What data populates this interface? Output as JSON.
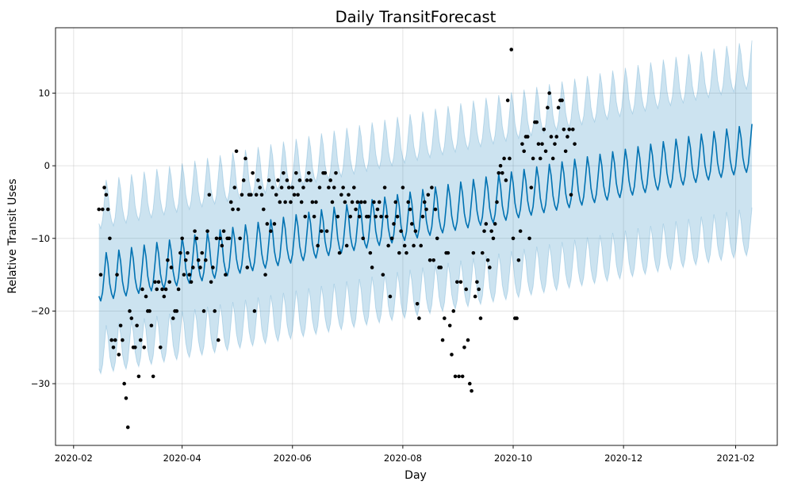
{
  "chart_data": {
    "type": "line",
    "title": "Daily TransitForecast",
    "xlabel": "Day",
    "ylabel": "Relative Transit Uses",
    "x_range": [
      "2020-01-22",
      "2021-02-24"
    ],
    "ylim": [
      -38.5,
      19.0
    ],
    "x_ticks": [
      {
        "date": "2020-02-01",
        "label": "2020-02"
      },
      {
        "date": "2020-04-01",
        "label": "2020-04"
      },
      {
        "date": "2020-06-01",
        "label": "2020-06"
      },
      {
        "date": "2020-08-01",
        "label": "2020-08"
      },
      {
        "date": "2020-10-01",
        "label": "2020-10"
      },
      {
        "date": "2020-12-01",
        "label": "2020-12"
      },
      {
        "date": "2021-02-01",
        "label": "2021-02"
      }
    ],
    "y_ticks": [
      {
        "value": 10,
        "label": "10"
      },
      {
        "value": 0,
        "label": "0"
      },
      {
        "value": -10,
        "label": "−10"
      },
      {
        "value": -20,
        "label": "−20"
      },
      {
        "value": -30,
        "label": "−30"
      }
    ],
    "grid": true,
    "series": [
      {
        "kind": "forecast_line",
        "color": "#0072B2",
        "start_date": "2020-02-15",
        "end_date": "2021-02-10",
        "trend_start": -15.3,
        "trend_end": 2.6,
        "weekly_amplitude": 3.5,
        "weekly_min": -3.5
      },
      {
        "kind": "uncertainty_band",
        "color": "#0072B2",
        "opacity": 0.2,
        "lower_offset_start": -10,
        "lower_offset_end": -11.5,
        "upper_offset_start": 10,
        "upper_offset_end": 11.5
      },
      {
        "kind": "observed_points",
        "color": "#000000",
        "points": [
          [
            "2020-02-15",
            -6
          ],
          [
            "2020-02-16",
            -15
          ],
          [
            "2020-02-17",
            -6
          ],
          [
            "2020-02-18",
            -3
          ],
          [
            "2020-02-19",
            -4
          ],
          [
            "2020-02-20",
            -6
          ],
          [
            "2020-02-21",
            -10
          ],
          [
            "2020-02-22",
            -24
          ],
          [
            "2020-02-23",
            -25
          ],
          [
            "2020-02-24",
            -24
          ],
          [
            "2020-02-25",
            -15
          ],
          [
            "2020-02-26",
            -26
          ],
          [
            "2020-02-27",
            -22
          ],
          [
            "2020-02-28",
            -24
          ],
          [
            "2020-02-29",
            -30
          ],
          [
            "2020-03-01",
            -32
          ],
          [
            "2020-03-02",
            -36
          ],
          [
            "2020-03-03",
            -20
          ],
          [
            "2020-03-04",
            -21
          ],
          [
            "2020-03-05",
            -25
          ],
          [
            "2020-03-06",
            -25
          ],
          [
            "2020-03-07",
            -22
          ],
          [
            "2020-03-08",
            -29
          ],
          [
            "2020-03-09",
            -24
          ],
          [
            "2020-03-10",
            -17
          ],
          [
            "2020-03-11",
            -25
          ],
          [
            "2020-03-12",
            -18
          ],
          [
            "2020-03-13",
            -20
          ],
          [
            "2020-03-14",
            -20
          ],
          [
            "2020-03-15",
            -22
          ],
          [
            "2020-03-16",
            -29
          ],
          [
            "2020-03-17",
            -16
          ],
          [
            "2020-03-18",
            -17
          ],
          [
            "2020-03-19",
            -16
          ],
          [
            "2020-03-20",
            -25
          ],
          [
            "2020-03-21",
            -17
          ],
          [
            "2020-03-22",
            -18
          ],
          [
            "2020-03-23",
            -17
          ],
          [
            "2020-03-24",
            -13
          ],
          [
            "2020-03-25",
            -16
          ],
          [
            "2020-03-26",
            -14
          ],
          [
            "2020-03-27",
            -21
          ],
          [
            "2020-03-28",
            -20
          ],
          [
            "2020-03-29",
            -20
          ],
          [
            "2020-03-30",
            -17
          ],
          [
            "2020-03-31",
            -12
          ],
          [
            "2020-04-01",
            -10
          ],
          [
            "2020-04-02",
            -15
          ],
          [
            "2020-04-03",
            -13
          ],
          [
            "2020-04-04",
            -12
          ],
          [
            "2020-04-05",
            -15
          ],
          [
            "2020-04-06",
            -16
          ],
          [
            "2020-04-07",
            -14
          ],
          [
            "2020-04-08",
            -9
          ],
          [
            "2020-04-09",
            -10
          ],
          [
            "2020-04-10",
            -13
          ],
          [
            "2020-04-11",
            -14
          ],
          [
            "2020-04-12",
            -12
          ],
          [
            "2020-04-13",
            -20
          ],
          [
            "2020-04-14",
            -13
          ],
          [
            "2020-04-15",
            -9
          ],
          [
            "2020-04-16",
            -4
          ],
          [
            "2020-04-17",
            -16
          ],
          [
            "2020-04-18",
            -14
          ],
          [
            "2020-04-19",
            -20
          ],
          [
            "2020-04-20",
            -10
          ],
          [
            "2020-04-21",
            -24
          ],
          [
            "2020-04-22",
            -10
          ],
          [
            "2020-04-23",
            -11
          ],
          [
            "2020-04-24",
            -9
          ],
          [
            "2020-04-25",
            -15
          ],
          [
            "2020-04-26",
            -10
          ],
          [
            "2020-04-27",
            -10
          ],
          [
            "2020-04-28",
            -5
          ],
          [
            "2020-04-29",
            -6
          ],
          [
            "2020-04-30",
            -3
          ],
          [
            "2020-05-01",
            2
          ],
          [
            "2020-05-02",
            -6
          ],
          [
            "2020-05-03",
            -10
          ],
          [
            "2020-05-04",
            -4
          ],
          [
            "2020-05-05",
            -2
          ],
          [
            "2020-05-06",
            1
          ],
          [
            "2020-05-07",
            -14
          ],
          [
            "2020-05-08",
            -4
          ],
          [
            "2020-05-09",
            -4
          ],
          [
            "2020-05-10",
            -1
          ],
          [
            "2020-05-11",
            -20
          ],
          [
            "2020-05-12",
            -4
          ],
          [
            "2020-05-13",
            -2
          ],
          [
            "2020-05-14",
            -3
          ],
          [
            "2020-05-15",
            -4
          ],
          [
            "2020-05-16",
            -6
          ],
          [
            "2020-05-17",
            -15
          ],
          [
            "2020-05-18",
            -8
          ],
          [
            "2020-05-19",
            -2
          ],
          [
            "2020-05-20",
            -9
          ],
          [
            "2020-05-21",
            -3
          ],
          [
            "2020-05-22",
            -8
          ],
          [
            "2020-05-23",
            -4
          ],
          [
            "2020-05-24",
            -2
          ],
          [
            "2020-05-25",
            -5
          ],
          [
            "2020-05-26",
            -3
          ],
          [
            "2020-05-27",
            -1
          ],
          [
            "2020-05-28",
            -5
          ],
          [
            "2020-05-29",
            -2
          ],
          [
            "2020-05-30",
            -3
          ],
          [
            "2020-05-31",
            -5
          ],
          [
            "2020-06-01",
            -3
          ],
          [
            "2020-06-02",
            -4
          ],
          [
            "2020-06-03",
            -1
          ],
          [
            "2020-06-04",
            -4
          ],
          [
            "2020-06-05",
            -2
          ],
          [
            "2020-06-06",
            -5
          ],
          [
            "2020-06-07",
            -3
          ],
          [
            "2020-06-08",
            -7
          ],
          [
            "2020-06-09",
            -2
          ],
          [
            "2020-06-10",
            -1
          ],
          [
            "2020-06-11",
            -2
          ],
          [
            "2020-06-12",
            -5
          ],
          [
            "2020-06-13",
            -7
          ],
          [
            "2020-06-14",
            -5
          ],
          [
            "2020-06-15",
            -11
          ],
          [
            "2020-06-16",
            -3
          ],
          [
            "2020-06-17",
            -9
          ],
          [
            "2020-06-18",
            -1
          ],
          [
            "2020-06-19",
            -1
          ],
          [
            "2020-06-20",
            -9
          ],
          [
            "2020-06-21",
            -3
          ],
          [
            "2020-06-22",
            -2
          ],
          [
            "2020-06-23",
            -5
          ],
          [
            "2020-06-24",
            -3
          ],
          [
            "2020-06-25",
            -1
          ],
          [
            "2020-06-26",
            -7
          ],
          [
            "2020-06-27",
            -12
          ],
          [
            "2020-06-28",
            -4
          ],
          [
            "2020-06-29",
            -3
          ],
          [
            "2020-06-30",
            -5
          ],
          [
            "2020-07-01",
            -11
          ],
          [
            "2020-07-02",
            -4
          ],
          [
            "2020-07-03",
            -7
          ],
          [
            "2020-07-04",
            -5
          ],
          [
            "2020-07-05",
            -3
          ],
          [
            "2020-07-06",
            -6
          ],
          [
            "2020-07-07",
            -5
          ],
          [
            "2020-07-08",
            -7
          ],
          [
            "2020-07-09",
            -5
          ],
          [
            "2020-07-10",
            -10
          ],
          [
            "2020-07-11",
            -5
          ],
          [
            "2020-07-12",
            -7
          ],
          [
            "2020-07-13",
            -7
          ],
          [
            "2020-07-14",
            -12
          ],
          [
            "2020-07-15",
            -14
          ],
          [
            "2020-07-16",
            -5
          ],
          [
            "2020-07-17",
            -7
          ],
          [
            "2020-07-18",
            -6
          ],
          [
            "2020-07-19",
            -5
          ],
          [
            "2020-07-20",
            -7
          ],
          [
            "2020-07-21",
            -15
          ],
          [
            "2020-07-22",
            -3
          ],
          [
            "2020-07-23",
            -7
          ],
          [
            "2020-07-24",
            -11
          ],
          [
            "2020-07-25",
            -18
          ],
          [
            "2020-07-26",
            -10
          ],
          [
            "2020-07-27",
            -8
          ],
          [
            "2020-07-28",
            -5
          ],
          [
            "2020-07-29",
            -7
          ],
          [
            "2020-07-30",
            -12
          ],
          [
            "2020-07-31",
            -9
          ],
          [
            "2020-08-01",
            -3
          ],
          [
            "2020-08-02",
            -11
          ],
          [
            "2020-08-03",
            -12
          ],
          [
            "2020-08-04",
            -5
          ],
          [
            "2020-08-05",
            -6
          ],
          [
            "2020-08-06",
            -8
          ],
          [
            "2020-08-07",
            -11
          ],
          [
            "2020-08-08",
            -9
          ],
          [
            "2020-08-09",
            -19
          ],
          [
            "2020-08-10",
            -21
          ],
          [
            "2020-08-11",
            -11
          ],
          [
            "2020-08-12",
            -7
          ],
          [
            "2020-08-13",
            -5
          ],
          [
            "2020-08-14",
            -6
          ],
          [
            "2020-08-15",
            -4
          ],
          [
            "2020-08-16",
            -13
          ],
          [
            "2020-08-17",
            -3
          ],
          [
            "2020-08-18",
            -13
          ],
          [
            "2020-08-19",
            -6
          ],
          [
            "2020-08-20",
            -10
          ],
          [
            "2020-08-21",
            -14
          ],
          [
            "2020-08-22",
            -14
          ],
          [
            "2020-08-23",
            -24
          ],
          [
            "2020-08-24",
            -21
          ],
          [
            "2020-08-25",
            -12
          ],
          [
            "2020-08-26",
            -12
          ],
          [
            "2020-08-27",
            -22
          ],
          [
            "2020-08-28",
            -26
          ],
          [
            "2020-08-29",
            -20
          ],
          [
            "2020-08-30",
            -29
          ],
          [
            "2020-08-31",
            -16
          ],
          [
            "2020-09-01",
            -29
          ],
          [
            "2020-09-02",
            -16
          ],
          [
            "2020-09-03",
            -29
          ],
          [
            "2020-09-04",
            -25
          ],
          [
            "2020-09-05",
            -17
          ],
          [
            "2020-09-06",
            -24
          ],
          [
            "2020-09-07",
            -30
          ],
          [
            "2020-09-08",
            -31
          ],
          [
            "2020-09-09",
            -12
          ],
          [
            "2020-09-10",
            -18
          ],
          [
            "2020-09-11",
            -16
          ],
          [
            "2020-09-12",
            -17
          ],
          [
            "2020-09-13",
            -21
          ],
          [
            "2020-09-14",
            -12
          ],
          [
            "2020-09-15",
            -9
          ],
          [
            "2020-09-16",
            -8
          ],
          [
            "2020-09-17",
            -13
          ],
          [
            "2020-09-18",
            -14
          ],
          [
            "2020-09-19",
            -9
          ],
          [
            "2020-09-20",
            -10
          ],
          [
            "2020-09-21",
            -8
          ],
          [
            "2020-09-22",
            -5
          ],
          [
            "2020-09-23",
            -1
          ],
          [
            "2020-09-24",
            0
          ],
          [
            "2020-09-25",
            -1
          ],
          [
            "2020-09-26",
            1
          ],
          [
            "2020-09-27",
            -2
          ],
          [
            "2020-09-28",
            9
          ],
          [
            "2020-09-29",
            1
          ],
          [
            "2020-09-30",
            16
          ],
          [
            "2020-10-01",
            -10
          ],
          [
            "2020-10-02",
            -21
          ],
          [
            "2020-10-03",
            -21
          ],
          [
            "2020-10-04",
            -13
          ],
          [
            "2020-10-05",
            -9
          ],
          [
            "2020-10-06",
            3
          ],
          [
            "2020-10-07",
            2
          ],
          [
            "2020-10-08",
            4
          ],
          [
            "2020-10-09",
            4
          ],
          [
            "2020-10-10",
            -10
          ],
          [
            "2020-10-11",
            -3
          ],
          [
            "2020-10-12",
            1
          ],
          [
            "2020-10-13",
            6
          ],
          [
            "2020-10-14",
            6
          ],
          [
            "2020-10-15",
            3
          ],
          [
            "2020-10-16",
            1
          ],
          [
            "2020-10-17",
            3
          ],
          [
            "2020-10-18",
            5
          ],
          [
            "2020-10-19",
            2
          ],
          [
            "2020-10-20",
            8
          ],
          [
            "2020-10-21",
            10
          ],
          [
            "2020-10-22",
            4
          ],
          [
            "2020-10-23",
            1
          ],
          [
            "2020-10-24",
            3
          ],
          [
            "2020-10-25",
            4
          ],
          [
            "2020-10-26",
            8
          ],
          [
            "2020-10-27",
            9
          ],
          [
            "2020-10-28",
            9
          ],
          [
            "2020-10-29",
            5
          ],
          [
            "2020-10-30",
            2
          ],
          [
            "2020-10-31",
            4
          ],
          [
            "2020-11-01",
            5
          ],
          [
            "2020-11-02",
            -4
          ],
          [
            "2020-11-03",
            5
          ],
          [
            "2020-11-04",
            3
          ]
        ]
      }
    ]
  }
}
